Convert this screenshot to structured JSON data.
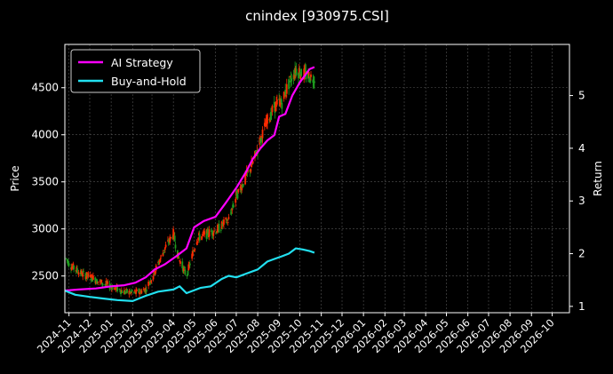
{
  "chart_data": {
    "type": "line",
    "title": "cnindex [930975.CSI]",
    "ylabel_left": "Price",
    "ylabel_right": "Return",
    "ylim_left": [
      2110,
      4960
    ],
    "ylim_right": [
      0.88,
      5.97
    ],
    "x_ticks": [
      "2024-11",
      "2024-12",
      "2025-01",
      "2025-02",
      "2025-03",
      "2025-04",
      "2025-05",
      "2025-06",
      "2025-07",
      "2025-08",
      "2025-09",
      "2025-10",
      "2025-11",
      "2025-12",
      "2026-01",
      "2026-02",
      "2026-03",
      "2026-04",
      "2026-05",
      "2026-06",
      "2026-07",
      "2026-08",
      "2026-09",
      "2026-10"
    ],
    "x_range": [
      "2024-10-26",
      "2026-10-26"
    ],
    "y_ticks_left": [
      2500,
      3000,
      3500,
      4000,
      4500
    ],
    "y_ticks_right": [
      1,
      2,
      3,
      4,
      5
    ],
    "grid": true,
    "legend_position": "top-left",
    "colors": {
      "background": "#000000",
      "axes": "#ffffff",
      "grid": "#555555",
      "candle_up": "#ff2a00",
      "candle_down": "#1e9b1e"
    },
    "series": [
      {
        "name": "AI Strategy",
        "axis": "right",
        "color": "#ff00ff",
        "dates": [
          "2024-10-26",
          "2024-11-15",
          "2024-12-10",
          "2025-01-01",
          "2025-01-20",
          "2025-02-05",
          "2025-02-20",
          "2025-03-05",
          "2025-03-20",
          "2025-04-05",
          "2025-04-20",
          "2025-05-01",
          "2025-05-15",
          "2025-06-01",
          "2025-06-15",
          "2025-07-01",
          "2025-07-15",
          "2025-07-25",
          "2025-08-05",
          "2025-08-15",
          "2025-08-25",
          "2025-09-01",
          "2025-09-10",
          "2025-09-20",
          "2025-10-01",
          "2025-10-15",
          "2025-10-22"
        ],
        "values": [
          1.3,
          1.32,
          1.34,
          1.38,
          1.4,
          1.45,
          1.55,
          1.7,
          1.8,
          1.95,
          2.1,
          2.5,
          2.62,
          2.7,
          2.95,
          3.25,
          3.55,
          3.8,
          4.0,
          4.15,
          4.25,
          4.6,
          4.65,
          5.0,
          5.25,
          5.5,
          5.54
        ]
      },
      {
        "name": "Buy-and-Hold",
        "axis": "right",
        "color": "#22e0f0",
        "dates": [
          "2024-10-26",
          "2024-11-10",
          "2024-12-01",
          "2024-12-20",
          "2025-01-10",
          "2025-02-01",
          "2025-02-20",
          "2025-03-10",
          "2025-04-01",
          "2025-04-10",
          "2025-04-20",
          "2025-05-10",
          "2025-05-25",
          "2025-06-10",
          "2025-06-20",
          "2025-07-01",
          "2025-07-15",
          "2025-08-01",
          "2025-08-15",
          "2025-08-25",
          "2025-09-05",
          "2025-09-15",
          "2025-09-25",
          "2025-10-05",
          "2025-10-15",
          "2025-10-22"
        ],
        "values": [
          1.3,
          1.22,
          1.18,
          1.15,
          1.12,
          1.1,
          1.2,
          1.28,
          1.32,
          1.38,
          1.25,
          1.35,
          1.38,
          1.52,
          1.58,
          1.55,
          1.62,
          1.7,
          1.85,
          1.9,
          1.95,
          2.0,
          2.1,
          2.08,
          2.05,
          2.02
        ]
      }
    ],
    "price_path": {
      "axis": "left",
      "dates": [
        "2024-10-26",
        "2024-11-05",
        "2024-11-20",
        "2024-12-05",
        "2024-12-20",
        "2025-01-05",
        "2025-01-20",
        "2025-02-05",
        "2025-02-20",
        "2025-03-05",
        "2025-03-20",
        "2025-04-01",
        "2025-04-08",
        "2025-04-20",
        "2025-05-05",
        "2025-05-20",
        "2025-06-05",
        "2025-06-20",
        "2025-07-01",
        "2025-07-15",
        "2025-07-25",
        "2025-08-05",
        "2025-08-15",
        "2025-08-25",
        "2025-09-05",
        "2025-09-15",
        "2025-09-25",
        "2025-10-05",
        "2025-10-22"
      ],
      "values": [
        2700,
        2600,
        2520,
        2480,
        2420,
        2380,
        2330,
        2320,
        2360,
        2550,
        2800,
        2950,
        2700,
        2500,
        2900,
        2950,
        3000,
        3100,
        3350,
        3550,
        3700,
        3950,
        4150,
        4300,
        4350,
        4550,
        4700,
        4650,
        4600
      ]
    }
  }
}
